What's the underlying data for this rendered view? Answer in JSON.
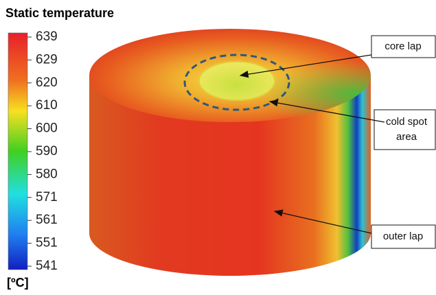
{
  "title": "Static temperature",
  "colorbar": {
    "ticks": [
      639,
      629,
      620,
      610,
      600,
      590,
      580,
      571,
      561,
      551,
      541
    ],
    "unit": "[ºC]"
  },
  "annotations": [
    {
      "label_lines": [
        "core lap"
      ]
    },
    {
      "label_lines": [
        "cold spot",
        "area"
      ]
    },
    {
      "label_lines": [
        "outer lap"
      ]
    }
  ]
}
